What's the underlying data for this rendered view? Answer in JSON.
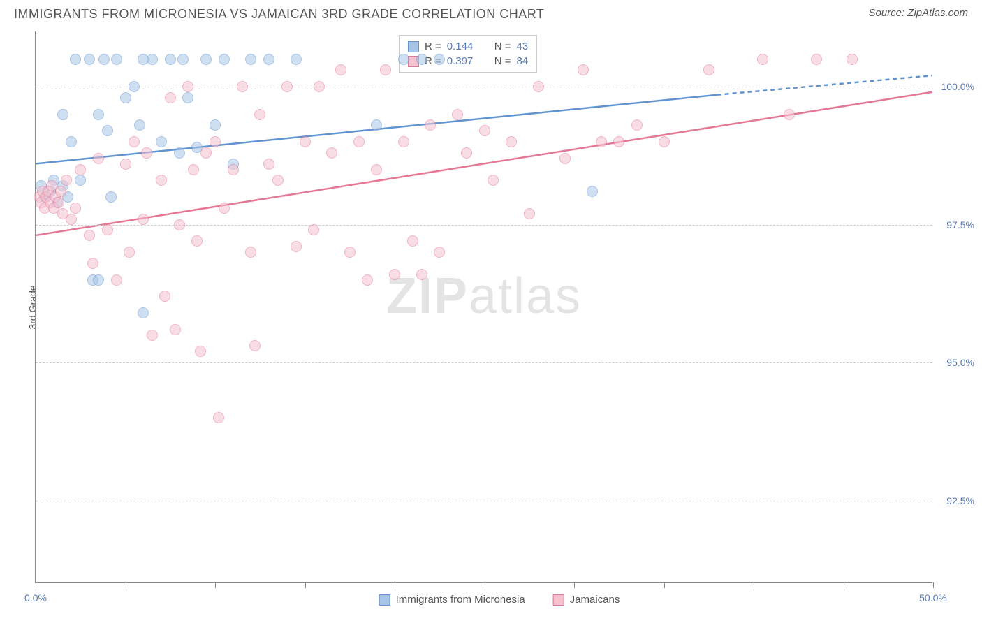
{
  "title": "IMMIGRANTS FROM MICRONESIA VS JAMAICAN 3RD GRADE CORRELATION CHART",
  "source": "Source: ZipAtlas.com",
  "watermark_bold": "ZIP",
  "watermark_light": "atlas",
  "chart": {
    "type": "scatter",
    "xlim": [
      0,
      50
    ],
    "ylim": [
      91,
      101
    ],
    "x_ticks": [
      0,
      5,
      10,
      15,
      20,
      25,
      30,
      35,
      40,
      45,
      50
    ],
    "x_tick_labels": {
      "0": "0.0%",
      "50": "50.0%"
    },
    "y_gridlines": [
      92.5,
      95.0,
      97.5,
      100.0
    ],
    "y_tick_labels": [
      "92.5%",
      "95.0%",
      "97.5%",
      "100.0%"
    ],
    "y_axis_label": "3rd Grade",
    "background_color": "#ffffff",
    "grid_color": "#cccccc",
    "axis_color": "#888888",
    "label_color": "#5b7bb5",
    "title_color": "#555555",
    "point_radius": 8,
    "point_opacity": 0.55,
    "series": [
      {
        "name": "Immigrants from Micronesia",
        "color_fill": "#a8c5e8",
        "color_stroke": "#6094d0",
        "r_value": "0.144",
        "n_value": "43",
        "trend": {
          "x1": 0,
          "y1": 98.6,
          "x2": 38,
          "y2": 99.85,
          "x2_dash": 50,
          "y2_dash": 100.2,
          "stroke_width": 2.5
        },
        "points": [
          [
            0.3,
            98.2
          ],
          [
            0.5,
            98.0
          ],
          [
            0.8,
            98.1
          ],
          [
            1.0,
            98.3
          ],
          [
            1.2,
            97.9
          ],
          [
            1.5,
            98.2
          ],
          [
            1.5,
            99.5
          ],
          [
            1.8,
            98.0
          ],
          [
            2.0,
            99.0
          ],
          [
            2.2,
            100.5
          ],
          [
            2.5,
            98.3
          ],
          [
            3.0,
            100.5
          ],
          [
            3.2,
            96.5
          ],
          [
            3.5,
            99.5
          ],
          [
            3.5,
            96.5
          ],
          [
            3.8,
            100.5
          ],
          [
            4.0,
            99.2
          ],
          [
            4.2,
            98.0
          ],
          [
            4.5,
            100.5
          ],
          [
            5.0,
            99.8
          ],
          [
            5.5,
            100.0
          ],
          [
            5.8,
            99.3
          ],
          [
            6.0,
            95.9
          ],
          [
            6.0,
            100.5
          ],
          [
            6.5,
            100.5
          ],
          [
            7.0,
            99.0
          ],
          [
            7.5,
            100.5
          ],
          [
            8.0,
            98.8
          ],
          [
            8.2,
            100.5
          ],
          [
            8.5,
            99.8
          ],
          [
            9.0,
            98.9
          ],
          [
            9.5,
            100.5
          ],
          [
            10.0,
            99.3
          ],
          [
            10.5,
            100.5
          ],
          [
            11.0,
            98.6
          ],
          [
            12.0,
            100.5
          ],
          [
            13.0,
            100.5
          ],
          [
            14.5,
            100.5
          ],
          [
            19.0,
            99.3
          ],
          [
            20.5,
            100.5
          ],
          [
            21.5,
            100.5
          ],
          [
            22.5,
            100.5
          ],
          [
            31.0,
            98.1
          ]
        ]
      },
      {
        "name": "Jamaicans",
        "color_fill": "#f5c2d0",
        "color_stroke": "#e57795",
        "r_value": "0.397",
        "n_value": "84",
        "trend": {
          "x1": 0,
          "y1": 97.3,
          "x2": 50,
          "y2": 99.9,
          "stroke_width": 2.5
        },
        "points": [
          [
            0.2,
            98.0
          ],
          [
            0.3,
            97.9
          ],
          [
            0.4,
            98.1
          ],
          [
            0.5,
            97.8
          ],
          [
            0.6,
            98.0
          ],
          [
            0.7,
            98.1
          ],
          [
            0.8,
            97.9
          ],
          [
            0.9,
            98.2
          ],
          [
            1.0,
            97.8
          ],
          [
            1.1,
            98.0
          ],
          [
            1.3,
            97.9
          ],
          [
            1.4,
            98.1
          ],
          [
            1.5,
            97.7
          ],
          [
            1.7,
            98.3
          ],
          [
            2.0,
            97.6
          ],
          [
            2.2,
            97.8
          ],
          [
            2.5,
            98.5
          ],
          [
            3.0,
            97.3
          ],
          [
            3.2,
            96.8
          ],
          [
            3.5,
            98.7
          ],
          [
            4.0,
            97.4
          ],
          [
            4.5,
            96.5
          ],
          [
            5.0,
            98.6
          ],
          [
            5.2,
            97.0
          ],
          [
            5.5,
            99.0
          ],
          [
            6.0,
            97.6
          ],
          [
            6.2,
            98.8
          ],
          [
            6.5,
            95.5
          ],
          [
            7.0,
            98.3
          ],
          [
            7.2,
            96.2
          ],
          [
            7.5,
            99.8
          ],
          [
            7.8,
            95.6
          ],
          [
            8.0,
            97.5
          ],
          [
            8.5,
            100.0
          ],
          [
            8.8,
            98.5
          ],
          [
            9.0,
            97.2
          ],
          [
            9.2,
            95.2
          ],
          [
            9.5,
            98.8
          ],
          [
            10.0,
            99.0
          ],
          [
            10.2,
            94.0
          ],
          [
            10.5,
            97.8
          ],
          [
            11.0,
            98.5
          ],
          [
            11.5,
            100.0
          ],
          [
            12.0,
            97.0
          ],
          [
            12.2,
            95.3
          ],
          [
            12.5,
            99.5
          ],
          [
            13.0,
            98.6
          ],
          [
            13.5,
            98.3
          ],
          [
            14.0,
            100.0
          ],
          [
            14.5,
            97.1
          ],
          [
            15.0,
            99.0
          ],
          [
            15.5,
            97.4
          ],
          [
            15.8,
            100.0
          ],
          [
            16.5,
            98.8
          ],
          [
            17.0,
            100.3
          ],
          [
            17.5,
            97.0
          ],
          [
            18.0,
            99.0
          ],
          [
            18.5,
            96.5
          ],
          [
            19.0,
            98.5
          ],
          [
            19.5,
            100.3
          ],
          [
            20.0,
            96.6
          ],
          [
            20.5,
            99.0
          ],
          [
            21.0,
            97.2
          ],
          [
            21.5,
            96.6
          ],
          [
            22.0,
            99.3
          ],
          [
            22.5,
            97.0
          ],
          [
            23.5,
            99.5
          ],
          [
            24.0,
            98.8
          ],
          [
            25.0,
            99.2
          ],
          [
            25.5,
            98.3
          ],
          [
            26.5,
            99.0
          ],
          [
            27.5,
            97.7
          ],
          [
            28.0,
            100.0
          ],
          [
            29.5,
            98.7
          ],
          [
            30.5,
            100.3
          ],
          [
            31.5,
            99.0
          ],
          [
            32.5,
            99.0
          ],
          [
            33.5,
            99.3
          ],
          [
            35.0,
            99.0
          ],
          [
            37.5,
            100.3
          ],
          [
            40.5,
            100.5
          ],
          [
            42.0,
            99.5
          ],
          [
            43.5,
            100.5
          ],
          [
            45.5,
            100.5
          ]
        ]
      }
    ],
    "legend_bottom": [
      {
        "label": "Immigrants from Micronesia",
        "fill": "#a8c5e8",
        "stroke": "#6094d0"
      },
      {
        "label": "Jamaicans",
        "fill": "#f5c2d0",
        "stroke": "#e57795"
      }
    ]
  }
}
